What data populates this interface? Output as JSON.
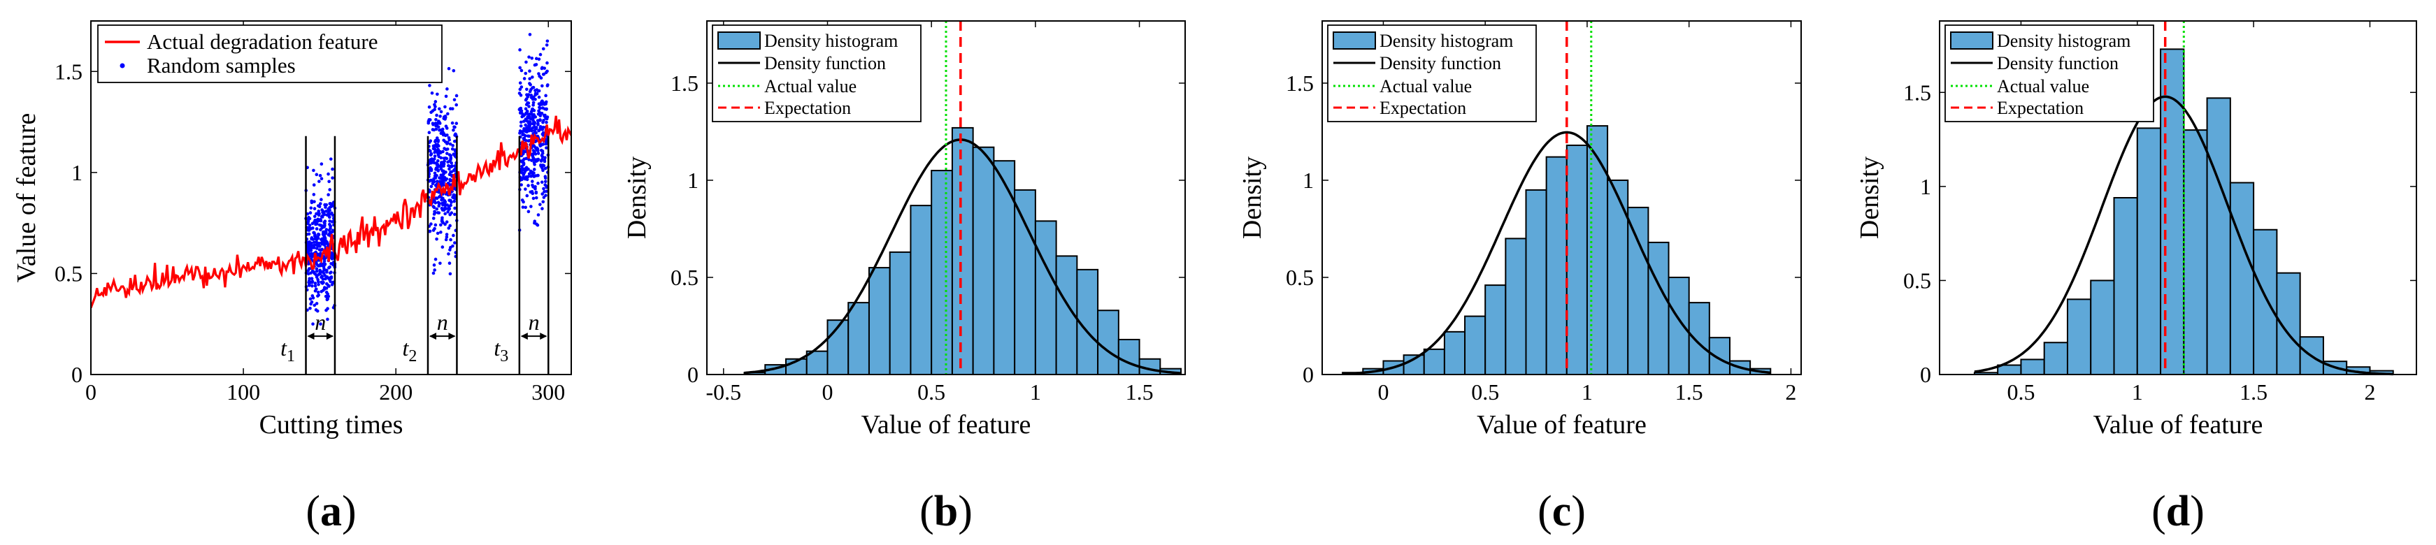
{
  "chart_data": [
    {
      "id": "a",
      "type": "line",
      "panel_label": "a",
      "xlabel": "Cutting times",
      "ylabel": "Value of feature",
      "xlim": [
        0,
        315
      ],
      "ylim": [
        0,
        1.75
      ],
      "xticks": [
        0,
        100,
        200,
        300
      ],
      "yticks": [
        0,
        0.5,
        1,
        1.5
      ],
      "xtick_labels": [
        "0",
        "100",
        "200",
        "300"
      ],
      "ytick_labels": [
        "0",
        "0.5",
        "1",
        "1.5"
      ],
      "legend": [
        "Actual degradation feature",
        "Random samples"
      ],
      "legend_position": "top-left",
      "series": [
        {
          "name": "Actual degradation feature",
          "color": "#ff0000",
          "trend_x": [
            0,
            20,
            40,
            60,
            80,
            100,
            120,
            140,
            150,
            160,
            180,
            200,
            220,
            240,
            260,
            280,
            300,
            315
          ],
          "trend_y": [
            0.4,
            0.44,
            0.46,
            0.48,
            0.5,
            0.53,
            0.55,
            0.55,
            0.58,
            0.62,
            0.69,
            0.77,
            0.86,
            0.95,
            1.03,
            1.1,
            1.2,
            1.18
          ]
        },
        {
          "name": "Random samples",
          "color": "#0000ff",
          "clusters": [
            {
              "x_range": [
                141,
                160
              ],
              "center": 0.62,
              "spread": 0.2,
              "clip": [
                0.25,
                1.38
              ]
            },
            {
              "x_range": [
                221,
                240
              ],
              "center": 0.98,
              "spread": 0.24,
              "clip": [
                0.45,
                1.72
              ]
            },
            {
              "x_range": [
                281,
                300
              ],
              "center": 1.18,
              "spread": 0.24,
              "clip": [
                0.4,
                1.72
              ]
            }
          ]
        }
      ],
      "windows": [
        {
          "start": 141,
          "end": 160,
          "t_label": "t",
          "t_sub": "1",
          "n_label": "n"
        },
        {
          "start": 221,
          "end": 240,
          "t_label": "t",
          "t_sub": "2",
          "n_label": "n"
        },
        {
          "start": 281,
          "end": 300,
          "t_label": "t",
          "t_sub": "3",
          "n_label": "n"
        }
      ]
    },
    {
      "id": "b",
      "type": "bar",
      "panel_label": "b",
      "xlabel": "Value of feature",
      "ylabel": "Density",
      "xlim": [
        -0.58,
        1.72
      ],
      "ylim": [
        0,
        1.82
      ],
      "xticks": [
        -0.5,
        0,
        0.5,
        1,
        1.5
      ],
      "yticks": [
        0,
        0.5,
        1,
        1.5
      ],
      "xtick_labels": [
        "-0.5",
        "0",
        "0.5",
        "1",
        "1.5"
      ],
      "ytick_labels": [
        "0",
        "0.5",
        "1",
        "1.5"
      ],
      "bin_edges": [
        -0.4,
        -0.3,
        -0.2,
        -0.1,
        0.0,
        0.1,
        0.2,
        0.3,
        0.4,
        0.5,
        0.6,
        0.7,
        0.8,
        0.9,
        1.0,
        1.1,
        1.2,
        1.3,
        1.4,
        1.5,
        1.6,
        1.7
      ],
      "density": [
        0.01,
        0.05,
        0.08,
        0.12,
        0.28,
        0.37,
        0.55,
        0.63,
        0.87,
        1.05,
        1.27,
        1.17,
        1.1,
        0.95,
        0.79,
        0.61,
        0.54,
        0.33,
        0.18,
        0.08,
        0.03
      ],
      "pdf": {
        "mean": 0.64,
        "sd": 0.33
      },
      "actual_value": 0.57,
      "expectation": 0.64,
      "legend": [
        "Density histogram",
        "Density function",
        "Actual value",
        "Expectation"
      ],
      "legend_position": "top-left",
      "colors": {
        "bar": "#5fa8d8",
        "pdf": "#000000",
        "actual": "#00e000",
        "expectation": "#ff0000"
      }
    },
    {
      "id": "c",
      "type": "bar",
      "panel_label": "c",
      "xlabel": "Value of feature",
      "ylabel": "Density",
      "xlim": [
        -0.3,
        2.05
      ],
      "ylim": [
        0,
        1.82
      ],
      "xticks": [
        0,
        0.5,
        1,
        1.5,
        2
      ],
      "yticks": [
        0,
        0.5,
        1,
        1.5
      ],
      "xtick_labels": [
        "0",
        "0.5",
        "1",
        "1.5",
        "2"
      ],
      "ytick_labels": [
        "0",
        "0.5",
        "1",
        "1.5"
      ],
      "bin_edges": [
        -0.2,
        -0.1,
        0.0,
        0.1,
        0.2,
        0.3,
        0.4,
        0.5,
        0.6,
        0.7,
        0.8,
        0.9,
        1.0,
        1.1,
        1.2,
        1.3,
        1.4,
        1.5,
        1.6,
        1.7,
        1.8,
        1.9
      ],
      "density": [
        0.01,
        0.03,
        0.07,
        0.1,
        0.13,
        0.22,
        0.3,
        0.46,
        0.7,
        0.95,
        1.12,
        1.18,
        1.28,
        1.0,
        0.86,
        0.68,
        0.5,
        0.37,
        0.19,
        0.07,
        0.03
      ],
      "pdf": {
        "mean": 0.9,
        "sd": 0.32
      },
      "actual_value": 1.02,
      "expectation": 0.9,
      "legend": [
        "Density histogram",
        "Density function",
        "Actual value",
        "Expectation"
      ],
      "legend_position": "top-left",
      "colors": {
        "bar": "#5fa8d8",
        "pdf": "#000000",
        "actual": "#00e000",
        "expectation": "#ff0000"
      }
    },
    {
      "id": "d",
      "type": "bar",
      "panel_label": "d",
      "xlabel": "Value of feature",
      "ylabel": "Density",
      "xlim": [
        0.15,
        2.2
      ],
      "ylim": [
        0,
        1.88
      ],
      "xticks": [
        0.5,
        1,
        1.5,
        2
      ],
      "yticks": [
        0,
        0.5,
        1,
        1.5
      ],
      "xtick_labels": [
        "0.5",
        "1",
        "1.5",
        "2"
      ],
      "ytick_labels": [
        "0",
        "0.5",
        "1",
        "1.5"
      ],
      "bin_edges": [
        0.3,
        0.4,
        0.5,
        0.6,
        0.7,
        0.8,
        0.9,
        1.0,
        1.1,
        1.2,
        1.3,
        1.4,
        1.5,
        1.6,
        1.7,
        1.8,
        1.9,
        2.0,
        2.1
      ],
      "density": [
        0.01,
        0.05,
        0.08,
        0.17,
        0.4,
        0.5,
        0.94,
        1.31,
        1.73,
        1.3,
        1.47,
        1.02,
        0.77,
        0.54,
        0.2,
        0.07,
        0.04,
        0.02
      ],
      "pdf": {
        "mean": 1.12,
        "sd": 0.27
      },
      "actual_value": 1.2,
      "expectation": 1.12,
      "legend": [
        "Density histogram",
        "Density function",
        "Actual value",
        "Expectation"
      ],
      "legend_position": "top-left",
      "colors": {
        "bar": "#5fa8d8",
        "pdf": "#000000",
        "actual": "#00e000",
        "expectation": "#ff0000"
      }
    }
  ]
}
